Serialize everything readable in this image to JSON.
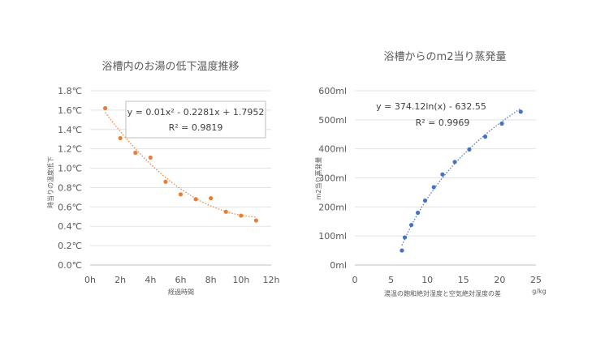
{
  "chart_data": [
    {
      "type": "scatter",
      "title": "浴槽内のお湯の低下温度推移",
      "xlabel": "経過時間",
      "ylabel": "時当りの温度低下",
      "xlim": [
        0,
        12
      ],
      "ylim": [
        0,
        1.8
      ],
      "x_ticks": [
        "0h",
        "2h",
        "4h",
        "6h",
        "8h",
        "10h",
        "12h"
      ],
      "y_ticks": [
        "0.0℃",
        "0.2℃",
        "0.4℃",
        "0.6℃",
        "0.8℃",
        "1.0℃",
        "1.2℃",
        "1.4℃",
        "1.6℃",
        "1.8℃"
      ],
      "grid": "horizontal",
      "marker_color": "#ED7D31",
      "series": [
        {
          "x": [
            1,
            2,
            3,
            4,
            5,
            6,
            7,
            8,
            9,
            10,
            11
          ],
          "y": [
            1.62,
            1.31,
            1.16,
            1.11,
            0.86,
            0.73,
            0.68,
            0.69,
            0.55,
            0.51,
            0.46
          ]
        }
      ],
      "trendline": {
        "kind": "polynomial",
        "coefficients": [
          0.01,
          -0.2281,
          1.7952
        ],
        "equation": "y = 0.01x² - 0.2281x + 1.7952",
        "r2": "R² = 0.9819"
      }
    },
    {
      "type": "scatter",
      "title": "浴槽からのm2当り蒸発量",
      "xlabel": "湯温の飽和絶対湿度と空気絶対湿度の差",
      "x_unit": "g/kg",
      "ylabel": "m2当り蒸発量",
      "xlim": [
        0,
        25
      ],
      "ylim": [
        0,
        600
      ],
      "x_ticks": [
        "0",
        "5",
        "10",
        "15",
        "20",
        "25"
      ],
      "y_ticks": [
        "0ml",
        "100ml",
        "200ml",
        "300ml",
        "400ml",
        "500ml",
        "600ml"
      ],
      "grid": "horizontal",
      "marker_color": "#4472C4",
      "series": [
        {
          "x": [
            6.5,
            6.9,
            7.8,
            8.7,
            9.7,
            10.9,
            12.1,
            13.8,
            15.8,
            18.0,
            20.3,
            22.9
          ],
          "y": [
            50,
            95,
            138,
            180,
            222,
            268,
            312,
            355,
            398,
            442,
            487,
            528
          ]
        }
      ],
      "trendline": {
        "kind": "logarithmic",
        "coefficients": [
          374.12,
          -632.55
        ],
        "equation": "y = 374.12ln(x) - 632.55",
        "r2": "R² = 0.9969"
      }
    }
  ]
}
